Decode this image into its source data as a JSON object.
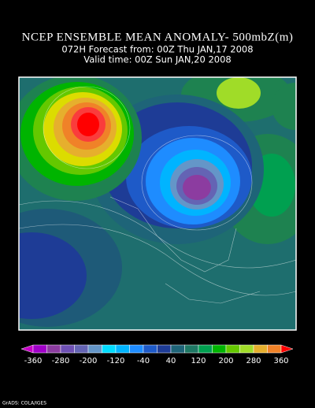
{
  "header": {
    "title": "NCEP ENSEMBLE MEAN ANOMALY- 500mbZ(m)",
    "forecast": "072H Forecast from: 00Z Thu JAN,17 2008",
    "valid": "Valid time: 00Z Sun JAN,20 2008"
  },
  "colorbar": {
    "labels": [
      -360,
      -280,
      -200,
      -120,
      -40,
      40,
      120,
      200,
      280,
      360
    ]
  },
  "footer": {
    "credit": "GrADS: COLA/IGES"
  }
}
